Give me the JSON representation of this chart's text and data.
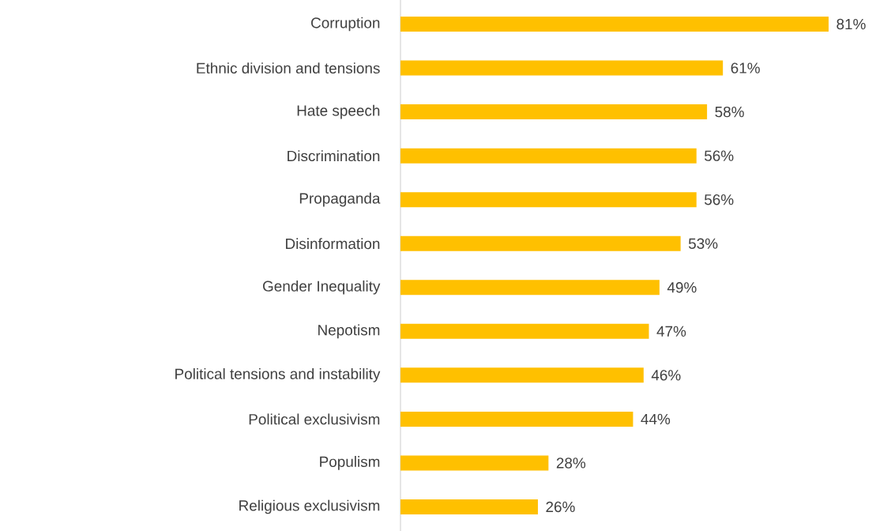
{
  "chart_data": {
    "type": "bar",
    "orientation": "horizontal",
    "categories": [
      "Corruption",
      "Ethnic division and tensions",
      "Hate speech",
      "Discrimination",
      "Propaganda",
      "Disinformation",
      "Gender Inequality",
      "Nepotism",
      "Political tensions and instability",
      "Political exclusivism",
      "Populism",
      "Religious exclusivism"
    ],
    "values": [
      81,
      61,
      58,
      56,
      56,
      53,
      49,
      47,
      46,
      44,
      28,
      26
    ],
    "value_labels": [
      "81%",
      "61%",
      "58%",
      "56%",
      "56%",
      "53%",
      "49%",
      "47%",
      "46%",
      "44%",
      "28%",
      "26%"
    ],
    "color": "#ffc000"
  }
}
